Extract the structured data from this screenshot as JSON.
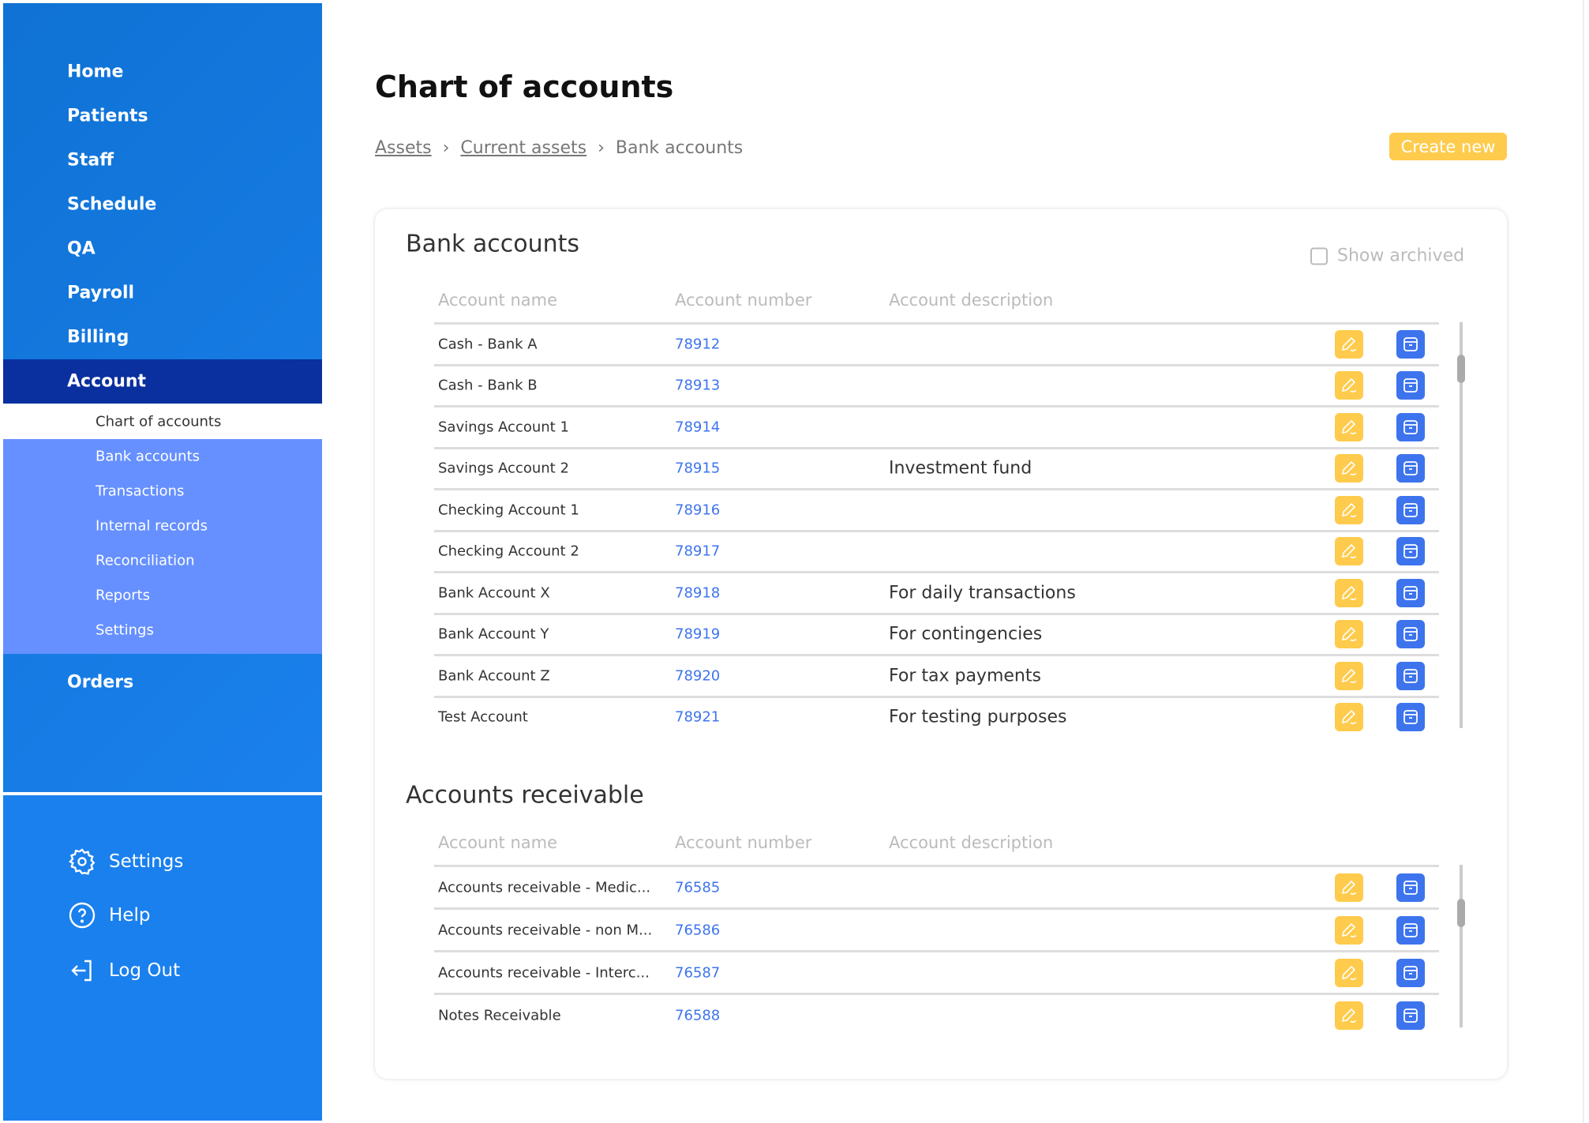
{
  "sidebar": {
    "items": [
      {
        "label": "Home"
      },
      {
        "label": "Patients"
      },
      {
        "label": "Staff"
      },
      {
        "label": "Schedule"
      },
      {
        "label": "QA"
      },
      {
        "label": "Payroll"
      },
      {
        "label": "Billing"
      },
      {
        "label": "Account"
      }
    ],
    "subitems": [
      {
        "label": "Chart of accounts"
      },
      {
        "label": "Bank accounts"
      },
      {
        "label": "Transactions"
      },
      {
        "label": "Internal records"
      },
      {
        "label": "Reconciliation"
      },
      {
        "label": "Reports"
      },
      {
        "label": "Settings"
      }
    ],
    "orders": "Orders",
    "bottom": {
      "settings": "Settings",
      "help": "Help",
      "logout": "Log Out"
    }
  },
  "header": {
    "title": "Chart of accounts",
    "breadcrumb": [
      "Assets",
      "Current assets",
      "Bank accounts"
    ],
    "create_label": "Create new"
  },
  "columns": [
    "Account name",
    "Account number",
    "Account description"
  ],
  "show_archived": "Show archived",
  "bank": {
    "title": "Bank accounts",
    "rows": [
      {
        "name": "Cash - Bank A",
        "number": "78912",
        "desc": ""
      },
      {
        "name": "Cash - Bank B",
        "number": "78913",
        "desc": ""
      },
      {
        "name": "Savings Account 1",
        "number": "78914",
        "desc": ""
      },
      {
        "name": "Savings Account 2",
        "number": "78915",
        "desc": "Investment fund"
      },
      {
        "name": "Checking Account 1",
        "number": "78916",
        "desc": ""
      },
      {
        "name": "Checking Account 2",
        "number": "78917",
        "desc": ""
      },
      {
        "name": "Bank Account X",
        "number": "78918",
        "desc": "For daily transactions"
      },
      {
        "name": "Bank Account Y",
        "number": "78919",
        "desc": "For contingencies"
      },
      {
        "name": "Bank Account Z",
        "number": "78920",
        "desc": "For tax payments"
      },
      {
        "name": "Test Account",
        "number": "78921",
        "desc": "For testing purposes"
      }
    ]
  },
  "receivable": {
    "title": "Accounts receivable",
    "rows": [
      {
        "name": "Accounts receivable  - Medic...",
        "number": "76585",
        "desc": ""
      },
      {
        "name": "Accounts receivable  - non M...",
        "number": "76586",
        "desc": ""
      },
      {
        "name": "Accounts receivable  - Interc...",
        "number": "76587",
        "desc": ""
      },
      {
        "name": "Notes Receivable",
        "number": "76588",
        "desc": ""
      }
    ]
  },
  "colors": {
    "sidebar": "#1177d6",
    "active": "#0a2f9f",
    "submenu": "#6690ff",
    "edit": "#ffcb4c",
    "archive": "#3d74ee",
    "link": "#3d74ee"
  }
}
